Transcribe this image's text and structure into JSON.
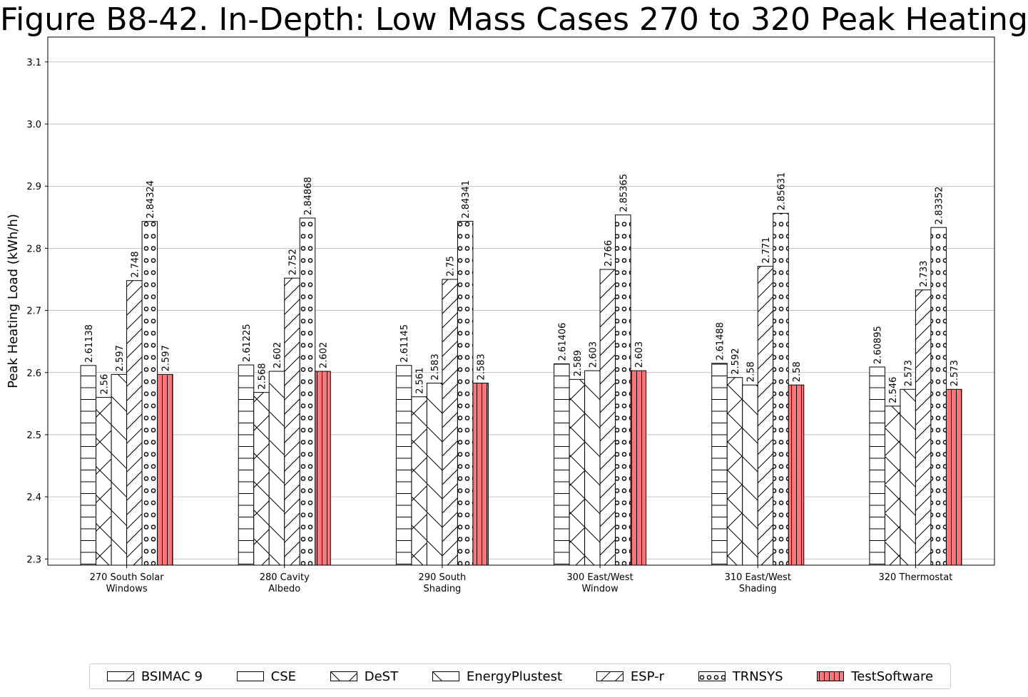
{
  "chart_data": {
    "type": "bar",
    "title": "Figure B8-42. In-Depth: Low Mass Cases 270 to 320 Peak Heating",
    "xlabel": "",
    "ylabel": "Peak Heating Load (kWh/h)",
    "ylim": [
      2.29,
      3.14
    ],
    "yticks": [
      "2.3",
      "2.4",
      "2.5",
      "2.6",
      "2.7",
      "2.8",
      "2.9",
      "3.0",
      "3.1"
    ],
    "grid": "y-major",
    "legend_position": "bottom",
    "categories": [
      "270 South Solar\nWindows",
      "280 Cavity\nAlbedo",
      "290 South\nShading",
      "300 East/West\nWindow",
      "310 East/West\nShading",
      "320 Thermostat"
    ],
    "series": [
      {
        "name": "BSIMAC 9",
        "pattern": "diag",
        "color": "#ffffff",
        "values": [
          null,
          null,
          null,
          null,
          null,
          null
        ],
        "labels": [
          "",
          "",
          "",
          "",
          "",
          ""
        ]
      },
      {
        "name": "CSE",
        "pattern": "hlines",
        "color": "#ffffff",
        "values": [
          2.61138,
          2.61225,
          2.61145,
          2.61406,
          2.61488,
          2.60895
        ],
        "labels": [
          "2.61138",
          "2.61225",
          "2.61145",
          "2.61406",
          "2.61488",
          "2.60895"
        ]
      },
      {
        "name": "DeST",
        "pattern": "cross",
        "color": "#ffffff",
        "values": [
          2.56,
          2.568,
          2.561,
          2.589,
          2.592,
          2.546
        ],
        "labels": [
          "2.56",
          "2.568",
          "2.561",
          "2.589",
          "2.592",
          "2.546"
        ]
      },
      {
        "name": "EnergyPlustest",
        "pattern": "back",
        "color": "#ffffff",
        "values": [
          2.597,
          2.602,
          2.583,
          2.603,
          2.58,
          2.573
        ],
        "labels": [
          "2.597",
          "2.602",
          "2.583",
          "2.603",
          "2.58",
          "2.573"
        ]
      },
      {
        "name": "ESP-r",
        "pattern": "diagfine",
        "color": "#ffffff",
        "values": [
          2.748,
          2.752,
          2.75,
          2.766,
          2.771,
          2.733
        ],
        "labels": [
          "2.748",
          "2.752",
          "2.75",
          "2.766",
          "2.771",
          "2.733"
        ]
      },
      {
        "name": "TRNSYS",
        "pattern": "circles",
        "color": "#ffffff",
        "values": [
          2.84324,
          2.84868,
          2.84341,
          2.85365,
          2.85631,
          2.83352
        ],
        "labels": [
          "2.84324",
          "2.84868",
          "2.84341",
          "2.85365",
          "2.85631",
          "2.83352"
        ]
      },
      {
        "name": "TestSoftware",
        "pattern": "vlines",
        "color": "#ff7777",
        "values": [
          2.597,
          2.602,
          2.583,
          2.603,
          2.58,
          2.573
        ],
        "labels": [
          "2.597",
          "2.602",
          "2.583",
          "2.603",
          "2.58",
          "2.573"
        ]
      }
    ]
  }
}
